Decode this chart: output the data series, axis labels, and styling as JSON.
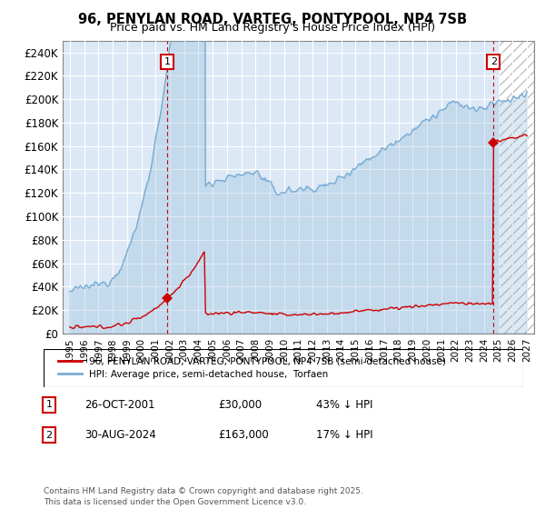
{
  "title_line1": "96, PENYLAN ROAD, VARTEG, PONTYPOOL, NP4 7SB",
  "title_line2": "Price paid vs. HM Land Registry's House Price Index (HPI)",
  "legend_property": "96, PENYLAN ROAD, VARTEG, PONTYPOOL, NP4 7SB (semi-detached house)",
  "legend_hpi": "HPI: Average price, semi-detached house,  Torfaen",
  "annotation1": {
    "num": "1",
    "date": "26-OCT-2001",
    "price": "£30,000",
    "hpi": "43% ↓ HPI"
  },
  "annotation2": {
    "num": "2",
    "date": "30-AUG-2024",
    "price": "£163,000",
    "hpi": "17% ↓ HPI"
  },
  "copyright": "Contains HM Land Registry data © Crown copyright and database right 2025.\nThis data is licensed under the Open Government Licence v3.0.",
  "property_color": "#cc0000",
  "hpi_color": "#7aadd4",
  "sale1_x": 2001.82,
  "sale1_y": 30000,
  "sale2_x": 2024.66,
  "sale2_y": 163000,
  "ylim": [
    0,
    250000
  ],
  "xlim": [
    1994.5,
    2027.5
  ],
  "yticks": [
    0,
    20000,
    40000,
    60000,
    80000,
    100000,
    120000,
    140000,
    160000,
    180000,
    200000,
    220000,
    240000
  ],
  "ytick_labels": [
    "£0",
    "£20K",
    "£40K",
    "£60K",
    "£80K",
    "£100K",
    "£120K",
    "£140K",
    "£160K",
    "£180K",
    "£200K",
    "£220K",
    "£240K"
  ],
  "background_color": "#ffffff",
  "plot_bg_color": "#dce8f5",
  "grid_color": "#ffffff",
  "hatch_start": 2025.0
}
